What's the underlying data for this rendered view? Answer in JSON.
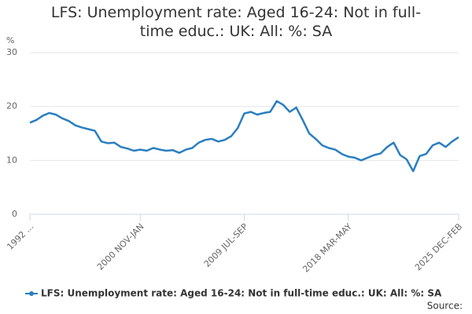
{
  "chart_data": {
    "type": "line",
    "title": "LFS: Unemployment rate: Aged 16-24: Not in full-time educ.: UK: All: %: SA",
    "y_label": "%",
    "source": "Source:",
    "categories": [
      "1992 ...",
      null,
      null,
      null,
      null,
      null,
      null,
      null,
      null,
      null,
      null,
      null,
      null,
      null,
      null,
      null,
      null,
      "2000 NOV-JAN",
      null,
      null,
      null,
      null,
      null,
      null,
      null,
      null,
      null,
      null,
      null,
      null,
      null,
      null,
      null,
      "2009 JUL-SEP",
      null,
      null,
      null,
      null,
      null,
      null,
      null,
      null,
      null,
      null,
      null,
      null,
      null,
      null,
      null,
      "2018 MAR-MAY",
      null,
      null,
      null,
      null,
      null,
      null,
      null,
      null,
      null,
      null,
      null,
      null,
      null,
      null,
      null,
      null,
      "2025 DEC-FEB"
    ],
    "series": [
      {
        "name": "LFS: Unemployment rate: Aged 16-24: Not in full-time educ.: UK: All: %: SA",
        "color": "#2a7fc0",
        "values": [
          17,
          17.5,
          18.3,
          18.8,
          18.5,
          17.8,
          17.3,
          16.5,
          16.1,
          15.8,
          15.5,
          13.5,
          13.2,
          13.3,
          12.5,
          12.2,
          11.8,
          12,
          11.8,
          12.3,
          12,
          11.8,
          11.9,
          11.4,
          12,
          12.3,
          13.3,
          13.8,
          14,
          13.5,
          13.8,
          14.5,
          16,
          18.7,
          19,
          18.5,
          18.8,
          19,
          21,
          20.3,
          19,
          19.8,
          17.5,
          15,
          14,
          12.8,
          12.3,
          12,
          11.2,
          10.7,
          10.5,
          10,
          10.5,
          11,
          11.3,
          12.5,
          13.3,
          11,
          10.2,
          8,
          10.8,
          11.2,
          12.8,
          13.3,
          12.5,
          13.5,
          14.3
        ]
      }
    ],
    "ylim": [
      0,
      30
    ],
    "yticks": [
      0,
      10,
      20,
      30
    ],
    "grid": true
  }
}
